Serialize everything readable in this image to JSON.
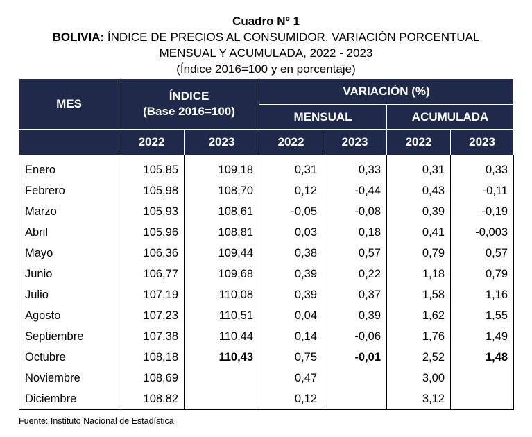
{
  "title": "Cuadro Nº 1",
  "subtitle_bold": "BOLIVIA:",
  "subtitle_rest": " ÍNDICE DE PRECIOS AL CONSUMIDOR, VARIACIÓN PORCENTUAL",
  "subtitle_line2": "MENSUAL Y ACUMULADA, 2022 - 2023",
  "subtitle_line3": "(Índice 2016=100 y en porcentaje)",
  "header": {
    "mes": "MES",
    "indice": "ÍNDICE",
    "indice_base": "(Base 2016=100)",
    "variacion": "VARIACIÓN (%)",
    "mensual": "MENSUAL",
    "acumulada": "ACUMULADA",
    "years": [
      "2022",
      "2023",
      "2022",
      "2023",
      "2022",
      "2023"
    ]
  },
  "rows": [
    {
      "mes": "Enero",
      "i2022": "105,85",
      "i2023": "109,18",
      "m2022": "0,31",
      "m2023": "0,33",
      "a2022": "0,31",
      "a2023": "0,33"
    },
    {
      "mes": "Febrero",
      "i2022": "105,98",
      "i2023": "108,70",
      "m2022": "0,12",
      "m2023": "-0,44",
      "a2022": "0,43",
      "a2023": "-0,11"
    },
    {
      "mes": "Marzo",
      "i2022": "105,93",
      "i2023": "108,61",
      "m2022": "-0,05",
      "m2023": "-0,08",
      "a2022": "0,39",
      "a2023": "-0,19"
    },
    {
      "mes": "Abril",
      "i2022": "105,96",
      "i2023": "108,81",
      "m2022": "0,03",
      "m2023": "0,18",
      "a2022": "0,41",
      "a2023": "-0,003"
    },
    {
      "mes": "Mayo",
      "i2022": "106,36",
      "i2023": "109,44",
      "m2022": "0,38",
      "m2023": "0,57",
      "a2022": "0,79",
      "a2023": "0,57"
    },
    {
      "mes": "Junio",
      "i2022": "106,77",
      "i2023": "109,68",
      "m2022": "0,39",
      "m2023": "0,22",
      "a2022": "1,18",
      "a2023": "0,79"
    },
    {
      "mes": "Julio",
      "i2022": "107,19",
      "i2023": "110,08",
      "m2022": "0,39",
      "m2023": "0,37",
      "a2022": "1,58",
      "a2023": "1,16"
    },
    {
      "mes": "Agosto",
      "i2022": "107,23",
      "i2023": "110,51",
      "m2022": "0,04",
      "m2023": "0,39",
      "a2022": "1,62",
      "a2023": "1,55"
    },
    {
      "mes": "Septiembre",
      "i2022": "107,38",
      "i2023": "110,44",
      "m2022": "0,14",
      "m2023": "-0,06",
      "a2022": "1,76",
      "a2023": "1,49"
    },
    {
      "mes": "Octubre",
      "i2022": "108,18",
      "i2023": "110,43",
      "m2022": "0,75",
      "m2023": "-0,01",
      "a2022": "2,52",
      "a2023": "1,48"
    },
    {
      "mes": "Noviembre",
      "i2022": "108,69",
      "i2023": "",
      "m2022": "0,47",
      "m2023": "",
      "a2022": "3,00",
      "a2023": ""
    },
    {
      "mes": "Diciembre",
      "i2022": "108,82",
      "i2023": "",
      "m2022": "0,12",
      "m2023": "",
      "a2022": "3,12",
      "a2023": ""
    }
  ],
  "source": "Fuente: Instituto Nacional de Estadística",
  "colors": {
    "header_bg": "#1f2a4a",
    "header_text": "#ffffff"
  }
}
